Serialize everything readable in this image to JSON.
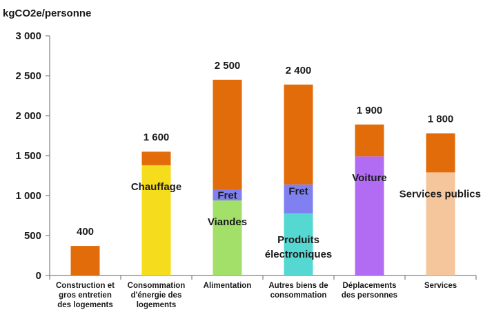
{
  "chart_data": {
    "type": "bar",
    "stacked": true,
    "unit_label": "kgCO2e/personne",
    "ylim": [
      0,
      3000
    ],
    "yticks": [
      0,
      500,
      1000,
      1500,
      2000,
      2500,
      3000
    ],
    "ytick_labels": [
      "0",
      "500",
      "1 000",
      "1 500",
      "2 000",
      "2 500",
      "3 000"
    ],
    "grid": false,
    "legend": "none",
    "bars": [
      {
        "category": [
          "Construction et",
          "gros entretien",
          "des logements"
        ],
        "total_label": "400",
        "segments": [
          {
            "value": 370,
            "color": "#e36c0a",
            "label": []
          }
        ]
      },
      {
        "category": [
          "Consommation",
          "d'énergie des",
          "logements"
        ],
        "total_label": "1 600",
        "segments": [
          {
            "value": 1380,
            "color": "#f5dc1c",
            "label": [
              "Chauffage"
            ]
          },
          {
            "value": 170,
            "color": "#e36c0a",
            "label": []
          }
        ]
      },
      {
        "category": [
          "Alimentation"
        ],
        "total_label": "2 500",
        "segments": [
          {
            "value": 940,
            "color": "#a2e06a",
            "label": [
              "Viandes"
            ]
          },
          {
            "value": 130,
            "color": "#8080f0",
            "label": [
              "Fret"
            ]
          },
          {
            "value": 1380,
            "color": "#e36c0a",
            "label": []
          }
        ]
      },
      {
        "category": [
          "Autres biens de",
          "consommation"
        ],
        "total_label": "2 400",
        "segments": [
          {
            "value": 780,
            "color": "#55d8d2",
            "label": [
              "Produits",
              "électroniques"
            ]
          },
          {
            "value": 360,
            "color": "#8080f0",
            "label": [
              "Fret"
            ]
          },
          {
            "value": 1250,
            "color": "#e36c0a",
            "label": []
          }
        ]
      },
      {
        "category": [
          "Déplacements",
          "des personnes"
        ],
        "total_label": "1 900",
        "segments": [
          {
            "value": 1490,
            "color": "#b26cf4",
            "label": [
              "Voiture"
            ]
          },
          {
            "value": 400,
            "color": "#e36c0a",
            "label": []
          }
        ]
      },
      {
        "category": [
          "Services"
        ],
        "total_label": "1 800",
        "segments": [
          {
            "value": 1290,
            "color": "#f5c69c",
            "label": [
              "Services publics"
            ]
          },
          {
            "value": 490,
            "color": "#e36c0a",
            "label": []
          }
        ]
      }
    ],
    "axis_color": "#7f7f7f"
  }
}
